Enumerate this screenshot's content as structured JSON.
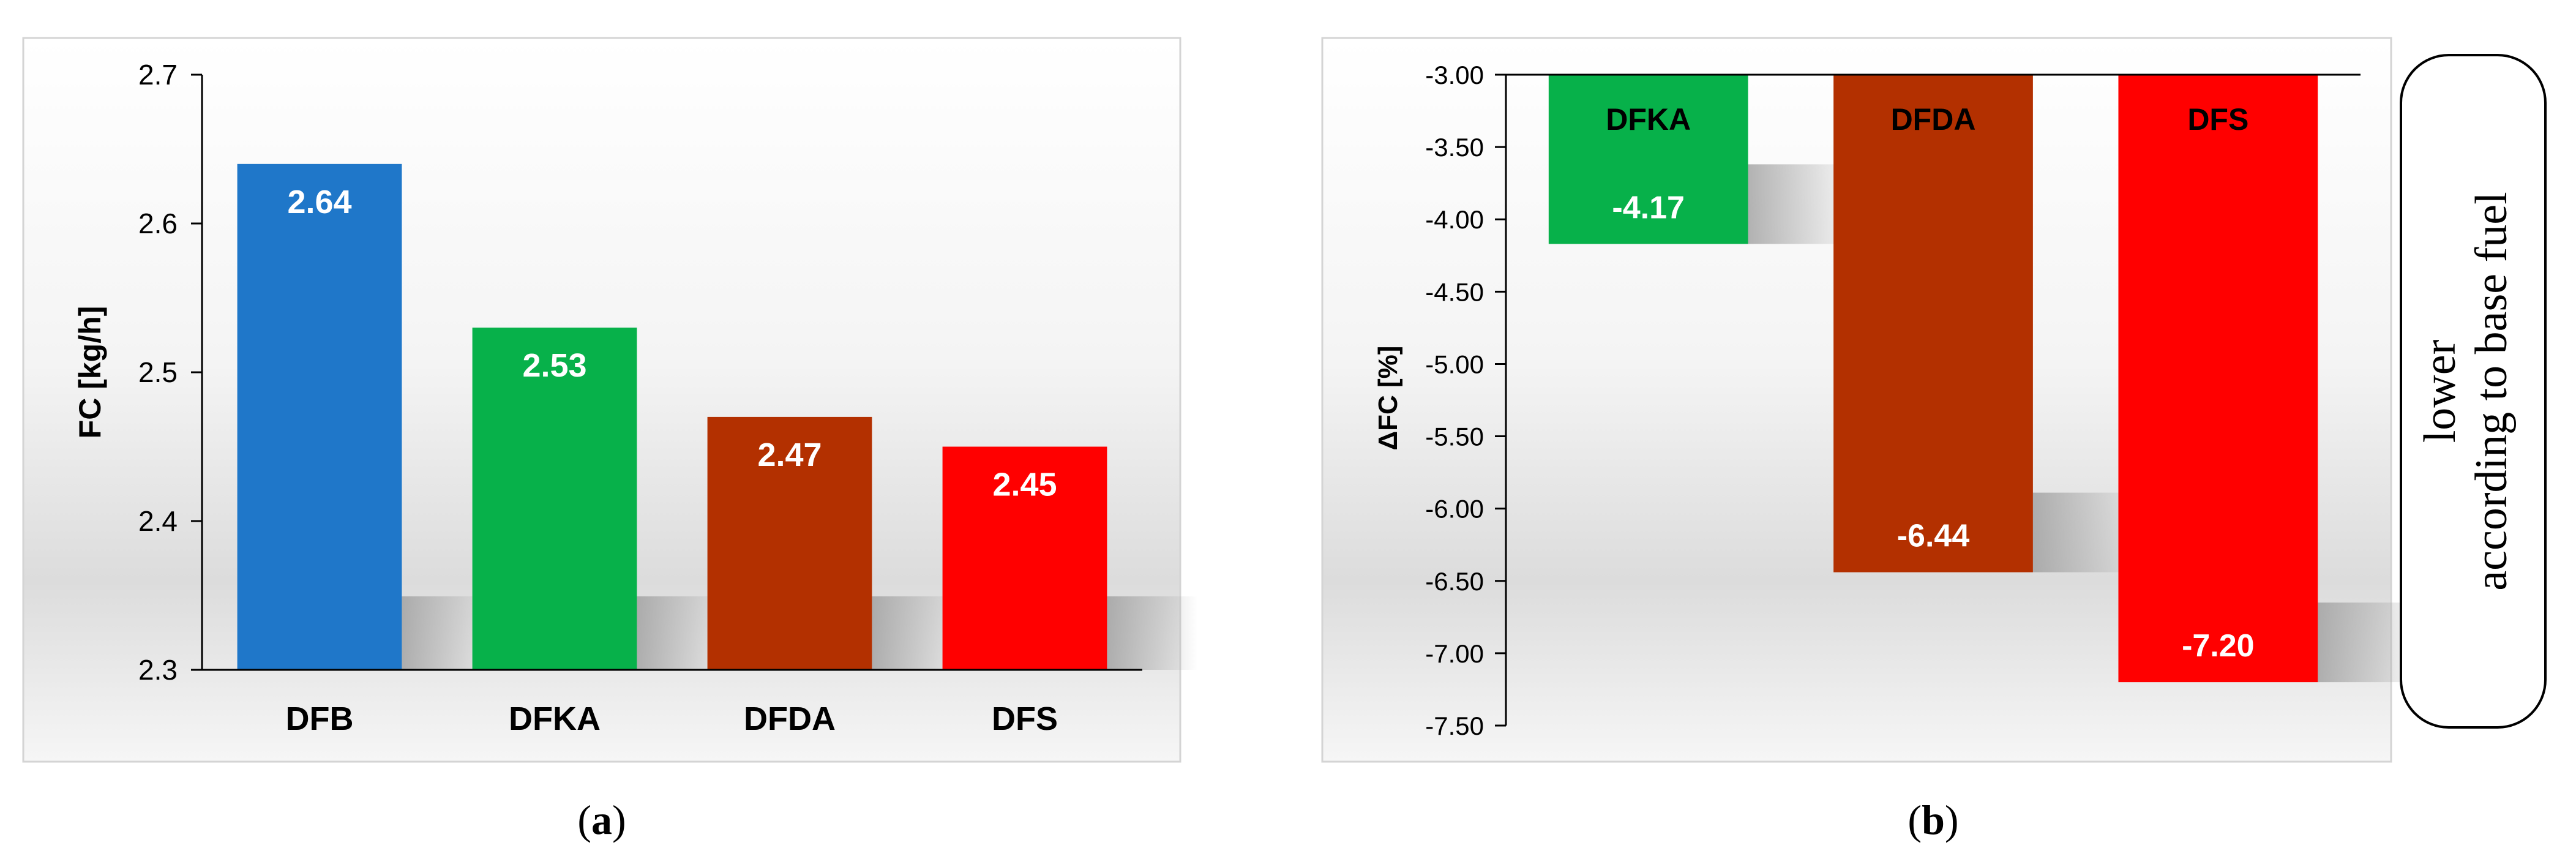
{
  "colors": {
    "DFB": "#1f77c9",
    "DFKA": "#07b14a",
    "DFDA": "#b33000",
    "DFS": "#ff0000",
    "panel_border": "#d4d4d4",
    "axis": "#000000",
    "bar_label": "#ffffff"
  },
  "panels": [
    {
      "caption_open": "(",
      "caption_letter": "a",
      "caption_close": ")"
    },
    {
      "caption_open": "(",
      "caption_letter": "b",
      "caption_close": ")"
    }
  ],
  "side_note": {
    "line1": "lower",
    "line2": "according to base fuel"
  },
  "chart_data": [
    {
      "type": "bar",
      "categories": [
        "DFB",
        "DFKA",
        "DFDA",
        "DFS"
      ],
      "values": [
        2.64,
        2.53,
        2.47,
        2.45
      ],
      "value_labels": [
        "2.64",
        "2.53",
        "2.47",
        "2.45"
      ],
      "xlabel": "",
      "ylabel": "FC [kg/h]",
      "ylim": [
        2.3,
        2.7
      ],
      "yticks": [
        "2.3",
        "2.4",
        "2.5",
        "2.6",
        "2.7"
      ],
      "grid": false,
      "legend": "none"
    },
    {
      "type": "bar",
      "categories": [
        "DFKA",
        "DFDA",
        "DFS"
      ],
      "values": [
        -4.17,
        -6.44,
        -7.2
      ],
      "value_labels": [
        "-4.17",
        "-6.44",
        "-7.20"
      ],
      "xlabel": "",
      "ylabel": "ΔFC [%]",
      "ylim": [
        -7.5,
        -3.0
      ],
      "yticks": [
        "-3.00",
        "-3.50",
        "-4.00",
        "-4.50",
        "-5.00",
        "-5.50",
        "-6.00",
        "-6.50",
        "-7.00",
        "-7.50"
      ],
      "category_labels_position": "inside-top",
      "grid": false,
      "legend": "none"
    }
  ]
}
